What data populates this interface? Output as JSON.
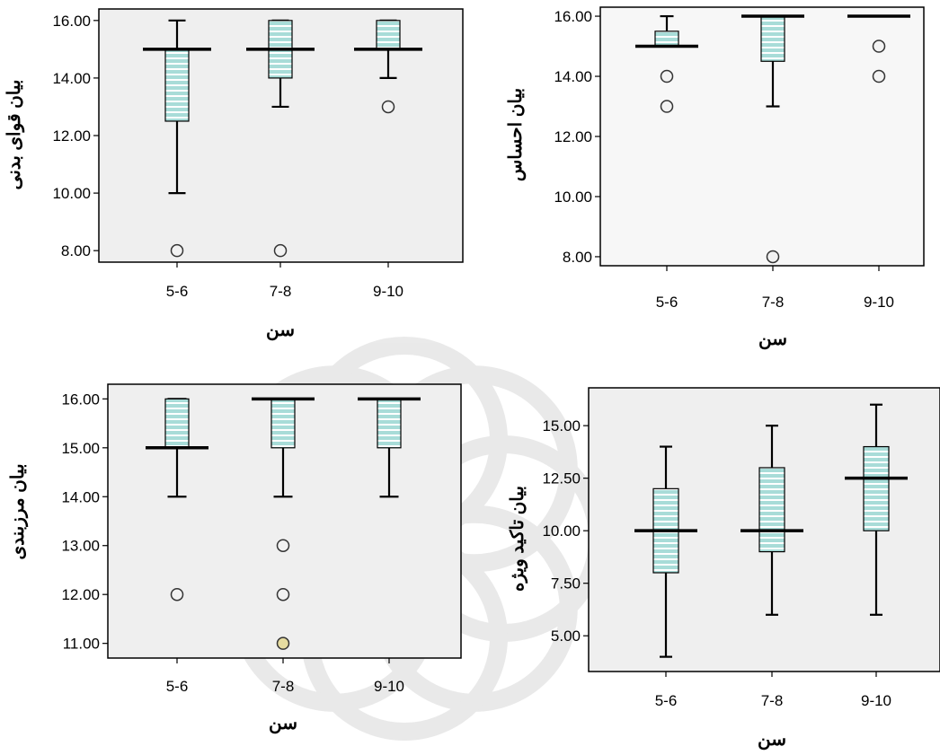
{
  "colors": {
    "plot_bg": "#efefef",
    "box_fill": "#a8dcd8",
    "box_stripe": "#ffffff",
    "line": "#000000",
    "outlier_fill": "#f2f2f2",
    "outlier_tan": "#e6dca0",
    "watermark": "#d8d8d8"
  },
  "chart_data": [
    {
      "type": "boxplot",
      "xlabel": "سن",
      "ylabel": "بیان قوای بدنی",
      "categories": [
        "5-6",
        "7-8",
        "9-10"
      ],
      "ylim": [
        7.6,
        16.4
      ],
      "yticks": [
        8,
        10,
        12,
        14,
        16
      ],
      "tick_format": 2,
      "grid": false,
      "boxes": [
        {
          "min": 10,
          "q1": 12.5,
          "median": 15,
          "q3": 15,
          "max": 16,
          "outliers": [
            8
          ]
        },
        {
          "min": 13,
          "q1": 14,
          "median": 15,
          "q3": 16,
          "max": 16,
          "outliers": [
            8
          ]
        },
        {
          "min": 14,
          "q1": 15,
          "median": 15,
          "q3": 16,
          "max": 16,
          "outliers": [
            13
          ]
        }
      ]
    },
    {
      "type": "boxplot",
      "xlabel": "سن",
      "ylabel": "بیان احساس",
      "categories": [
        "5-6",
        "7-8",
        "9-10"
      ],
      "ylim": [
        7.7,
        16.3
      ],
      "yticks": [
        8,
        10,
        12,
        14,
        16
      ],
      "tick_format": 2,
      "grid": false,
      "boxes": [
        {
          "min": 15,
          "q1": 15,
          "median": 15,
          "q3": 15.5,
          "max": 16,
          "outliers": [
            14,
            13
          ]
        },
        {
          "min": 13,
          "q1": 14.5,
          "median": 16,
          "q3": 16,
          "max": 16,
          "outliers": [
            8
          ]
        },
        {
          "min": 16,
          "q1": 16,
          "median": 16,
          "q3": 16,
          "max": 16,
          "outliers": [
            15,
            14
          ]
        }
      ]
    },
    {
      "type": "boxplot",
      "xlabel": "سن",
      "ylabel": "بیان مرزبندی",
      "categories": [
        "5-6",
        "7-8",
        "9-10"
      ],
      "ylim": [
        10.7,
        16.3
      ],
      "yticks": [
        11,
        12,
        13,
        14,
        15,
        16
      ],
      "tick_format": 2,
      "grid": false,
      "boxes": [
        {
          "min": 14,
          "q1": 15,
          "median": 15,
          "q3": 16,
          "max": 16,
          "outliers": [
            12
          ]
        },
        {
          "min": 14,
          "q1": 15,
          "median": 16,
          "q3": 16,
          "max": 16,
          "outliers": [
            13,
            12,
            11
          ]
        },
        {
          "min": 14,
          "q1": 15,
          "median": 16,
          "q3": 16,
          "max": 16,
          "outliers": []
        }
      ]
    },
    {
      "type": "boxplot",
      "xlabel": "سن",
      "ylabel": "بیان تاکید ویژه",
      "categories": [
        "5-6",
        "7-8",
        "9-10"
      ],
      "ylim": [
        3.3,
        16.8
      ],
      "yticks": [
        5,
        7.5,
        10,
        12.5,
        15
      ],
      "tick_format": 2,
      "grid": false,
      "boxes": [
        {
          "min": 4,
          "q1": 8,
          "median": 10,
          "q3": 12,
          "max": 14,
          "outliers": []
        },
        {
          "min": 6,
          "q1": 9,
          "median": 10,
          "q3": 13,
          "max": 15,
          "outliers": []
        },
        {
          "min": 6,
          "q1": 10,
          "median": 12.5,
          "q3": 14,
          "max": 16,
          "outliers": []
        }
      ]
    }
  ]
}
